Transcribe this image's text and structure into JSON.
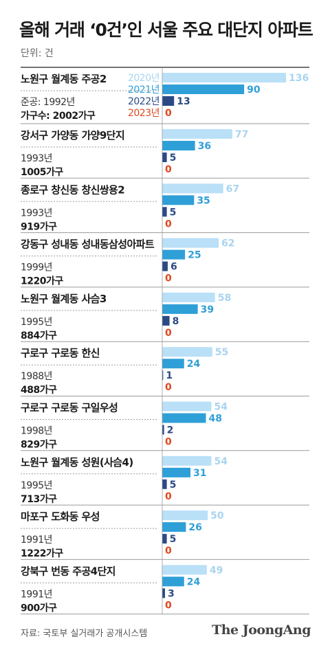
{
  "header": {
    "title": "올해 거래 ‘0건’인 서울 주요 대단지 아파트",
    "unit": "단위: 건"
  },
  "footer": {
    "source": "자료: 국토부 실거래가 공개시스템",
    "brand": "The JoongAng"
  },
  "colors": {
    "2020": "#b9e0f7",
    "2021": "#2f9fd8",
    "2022": "#2b4a85",
    "2023": "#e0481f"
  },
  "chart_data": {
    "type": "bar",
    "orientation": "horizontal",
    "legend": [
      "2020년",
      "2021년",
      "2022년",
      "2023년"
    ],
    "series": [
      {
        "name": "2020년",
        "values": [
          136,
          77,
          67,
          62,
          58,
          55,
          54,
          54,
          50,
          49
        ]
      },
      {
        "name": "2021년",
        "values": [
          90,
          36,
          35,
          25,
          39,
          24,
          48,
          31,
          26,
          24
        ]
      },
      {
        "name": "2022년",
        "values": [
          13,
          5,
          5,
          6,
          8,
          1,
          2,
          5,
          5,
          3
        ]
      },
      {
        "name": "2023년",
        "values": [
          0,
          0,
          0,
          0,
          0,
          0,
          0,
          0,
          0,
          0
        ]
      }
    ],
    "complexes": [
      {
        "name": "노원구 월계동 주공2",
        "built": "준공: 1992년",
        "households": "가구수: 2002가구"
      },
      {
        "name": "강서구 가양동 가양9단지",
        "built": "1993년",
        "households": "1005가구"
      },
      {
        "name": "종로구 창신동 창신쌍용2",
        "built": "1993년",
        "households": "919가구"
      },
      {
        "name": "강동구 성내동 성내동삼성아파트",
        "built": "1999년",
        "households": "1220가구"
      },
      {
        "name": "노원구 월계동 사슴3",
        "built": "1995년",
        "households": "884가구"
      },
      {
        "name": "구로구 구로동 한신",
        "built": "1988년",
        "households": "488가구"
      },
      {
        "name": "구로구 구로동 구일우성",
        "built": "1998년",
        "households": "829가구"
      },
      {
        "name": "노원구 월계동 성원(사슴4)",
        "built": "1995년",
        "households": "713가구"
      },
      {
        "name": "마포구 도화동 우성",
        "built": "1991년",
        "households": "1222가구"
      },
      {
        "name": "강북구 번동 주공4단지",
        "built": "1991년",
        "households": "900가구"
      }
    ]
  }
}
